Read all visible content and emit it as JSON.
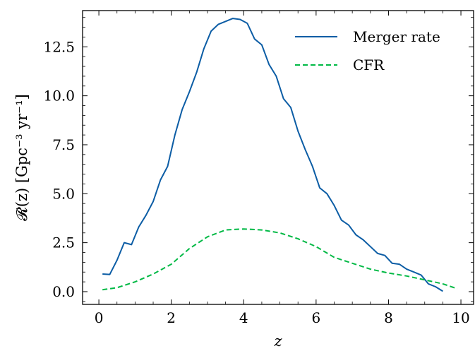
{
  "chart_data": {
    "type": "line",
    "xlabel": "z",
    "ylabel": "𝓡(z) [Gpc⁻³ yr⁻¹]",
    "xlim": [
      -0.45,
      10.35
    ],
    "ylim": [
      -0.65,
      14.35
    ],
    "xticks": [
      0,
      2,
      4,
      6,
      8,
      10
    ],
    "xtick_labels": [
      "0",
      "2",
      "4",
      "6",
      "8",
      "10"
    ],
    "yticks": [
      0.0,
      2.5,
      5.0,
      7.5,
      10.0,
      12.5
    ],
    "ytick_labels": [
      "0.0",
      "2.5",
      "5.0",
      "7.5",
      "10.0",
      "12.5"
    ],
    "grid": false,
    "legend_position": "top-right",
    "series": [
      {
        "name": "Merger rate",
        "color": "#0C5DA5",
        "style": "solid",
        "x": [
          0.1,
          0.3,
          0.5,
          0.7,
          0.9,
          1.1,
          1.3,
          1.5,
          1.7,
          1.9,
          2.1,
          2.3,
          2.5,
          2.7,
          2.9,
          3.1,
          3.3,
          3.5,
          3.7,
          3.9,
          4.1,
          4.3,
          4.5,
          4.7,
          4.9,
          5.1,
          5.3,
          5.5,
          5.7,
          5.9,
          6.1,
          6.3,
          6.5,
          6.7,
          6.9,
          7.1,
          7.3,
          7.5,
          7.7,
          7.9,
          8.1,
          8.3,
          8.5,
          8.7,
          8.9,
          9.1,
          9.3,
          9.5
        ],
        "y": [
          0.9,
          0.88,
          1.6,
          2.5,
          2.4,
          3.3,
          3.9,
          4.6,
          5.7,
          6.4,
          8.0,
          9.3,
          10.2,
          11.2,
          12.4,
          13.3,
          13.65,
          13.8,
          13.95,
          13.9,
          13.7,
          12.9,
          12.6,
          11.6,
          11.0,
          9.85,
          9.4,
          8.2,
          7.25,
          6.4,
          5.3,
          5.0,
          4.4,
          3.65,
          3.4,
          2.9,
          2.65,
          2.3,
          1.95,
          1.85,
          1.45,
          1.4,
          1.15,
          1.0,
          0.85,
          0.4,
          0.25,
          0.02
        ]
      },
      {
        "name": "CFR",
        "color": "#00B945",
        "style": "dashed",
        "x": [
          0.1,
          0.5,
          1.0,
          1.5,
          2.0,
          2.5,
          3.0,
          3.5,
          4.0,
          4.5,
          5.0,
          5.5,
          6.0,
          6.5,
          7.0,
          7.5,
          8.0,
          8.5,
          9.0,
          9.5,
          9.9
        ],
        "y": [
          0.1,
          0.2,
          0.5,
          0.9,
          1.4,
          2.2,
          2.8,
          3.15,
          3.2,
          3.15,
          3.0,
          2.7,
          2.3,
          1.75,
          1.45,
          1.15,
          0.95,
          0.8,
          0.6,
          0.4,
          0.15
        ]
      }
    ]
  }
}
